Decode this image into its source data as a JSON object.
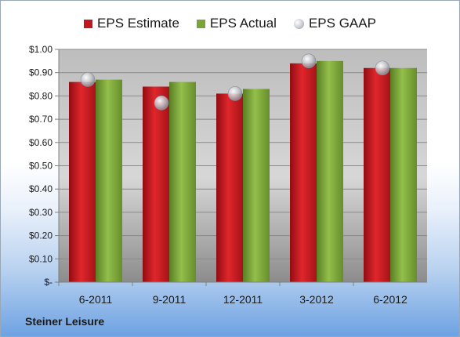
{
  "chart_data": {
    "type": "bar",
    "categories": [
      "6-2011",
      "9-2011",
      "12-2011",
      "3-2012",
      "6-2012"
    ],
    "series": [
      {
        "name": "EPS Estimate",
        "values": [
          0.86,
          0.84,
          0.81,
          0.94,
          0.92
        ],
        "color": "#c0181e"
      },
      {
        "name": "EPS Actual",
        "values": [
          0.87,
          0.86,
          0.83,
          0.95,
          0.92
        ],
        "color": "#7aa437"
      }
    ],
    "scatter_series": {
      "name": "EPS GAAP",
      "values": [
        0.87,
        0.77,
        0.81,
        0.95,
        0.92
      ]
    },
    "y_ticks": [
      "$-",
      "$0.10",
      "$0.20",
      "$0.30",
      "$0.40",
      "$0.50",
      "$0.60",
      "$0.70",
      "$0.80",
      "$0.90",
      "$1.00"
    ],
    "ylim": [
      0,
      1.0
    ],
    "grid": true,
    "legend_position": "top"
  },
  "footer": {
    "company": "Steiner Leisure"
  }
}
